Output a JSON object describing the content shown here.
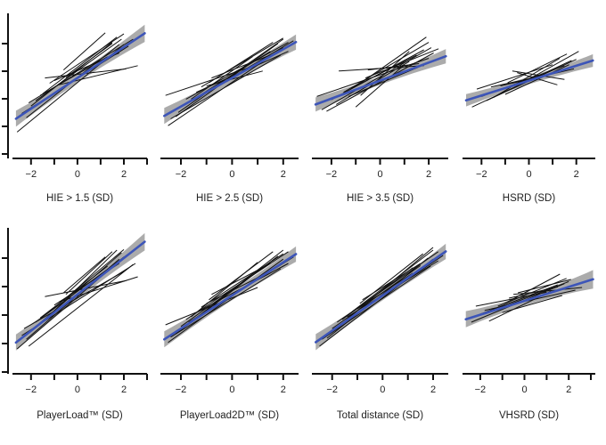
{
  "chart_data": [
    {
      "type": "line",
      "xlabel": "HIE > 1.5 (SD)",
      "xlim": [
        -2.8,
        3.0
      ],
      "xticks": [
        -2,
        0,
        2
      ],
      "fit": {
        "intercept": 0.05,
        "slope": 0.29,
        "band": 0.09
      },
      "individual_lines": [
        [
          -2.6,
          -0.97,
          2.0,
          0.68
        ],
        [
          -2.2,
          -0.7,
          1.8,
          0.68
        ],
        [
          -2.0,
          -0.48,
          1.5,
          0.72
        ],
        [
          -1.8,
          -0.38,
          1.9,
          0.78
        ],
        [
          -2.4,
          -0.62,
          2.2,
          0.65
        ],
        [
          -1.2,
          -0.05,
          2.0,
          0.88
        ],
        [
          -1.6,
          -0.28,
          1.3,
          0.45
        ],
        [
          -0.6,
          0.2,
          1.2,
          0.9
        ],
        [
          -1.0,
          0.0,
          1.8,
          0.52
        ],
        [
          -1.4,
          0.05,
          2.1,
          0.22
        ],
        [
          -0.8,
          -0.08,
          2.6,
          0.28
        ],
        [
          -2.1,
          -0.42,
          2.4,
          0.78
        ],
        [
          -1.5,
          -0.25,
          1.7,
          0.82
        ],
        [
          -0.5,
          0.06,
          1.5,
          0.7
        ]
      ]
    },
    {
      "type": "line",
      "xlabel": "HIE > 2.5 (SD)",
      "xlim": [
        -2.8,
        2.6
      ],
      "xticks": [
        -2,
        0,
        2
      ],
      "fit": {
        "intercept": 0.05,
        "slope": 0.27,
        "band": 0.09
      },
      "individual_lines": [
        [
          -2.5,
          -0.85,
          2.0,
          0.62
        ],
        [
          -2.2,
          -0.68,
          1.8,
          0.7
        ],
        [
          -2.0,
          -0.5,
          1.5,
          0.55
        ],
        [
          -1.8,
          -0.35,
          2.2,
          0.72
        ],
        [
          -1.6,
          -0.35,
          0.8,
          0.45
        ],
        [
          -1.2,
          -0.12,
          2.0,
          0.8
        ],
        [
          -0.9,
          -0.04,
          1.6,
          0.72
        ],
        [
          -2.4,
          -0.72,
          1.9,
          0.48
        ],
        [
          -1.4,
          -0.22,
          2.2,
          0.55
        ],
        [
          -0.8,
          0.05,
          1.5,
          0.48
        ],
        [
          -2.1,
          -0.6,
          2.0,
          0.78
        ],
        [
          -2.6,
          -0.28,
          1.0,
          0.3
        ],
        [
          -1.0,
          -0.1,
          1.2,
          0.18
        ],
        [
          -1.7,
          -0.42,
          2.4,
          0.75
        ]
      ]
    },
    {
      "type": "line",
      "xlabel": "HIE > 3.5 (SD)",
      "xlim": [
        -2.8,
        2.8
      ],
      "xticks": [
        -2,
        0,
        2
      ],
      "fit": {
        "intercept": 0.0,
        "slope": 0.17,
        "band": 0.08
      },
      "individual_lines": [
        [
          -2.4,
          -0.55,
          2.1,
          0.62
        ],
        [
          -2.0,
          -0.36,
          1.8,
          0.58
        ],
        [
          -1.5,
          -0.22,
          2.0,
          0.72
        ],
        [
          -1.2,
          -0.15,
          1.5,
          0.48
        ],
        [
          -0.9,
          -0.08,
          1.9,
          0.82
        ],
        [
          -2.6,
          -0.3,
          2.0,
          0.42
        ],
        [
          -1.8,
          -0.45,
          1.2,
          0.36
        ],
        [
          -0.6,
          0.05,
          2.4,
          0.6
        ],
        [
          -1.0,
          -0.5,
          1.0,
          0.3
        ],
        [
          -2.2,
          -0.58,
          2.2,
          0.52
        ],
        [
          -1.3,
          -0.3,
          2.6,
          0.45
        ],
        [
          -0.5,
          0.2,
          1.6,
          0.32
        ],
        [
          -1.7,
          0.18,
          1.8,
          0.28
        ],
        [
          -0.8,
          -0.28,
          1.2,
          0.55
        ]
      ]
    },
    {
      "type": "line",
      "xlabel": "HSRD (SD)",
      "xlim": [
        -2.8,
        2.8
      ],
      "xticks": [
        -2,
        0,
        2
      ],
      "fit": {
        "intercept": 0.0,
        "slope": 0.14,
        "band": 0.07
      },
      "individual_lines": [
        [
          -2.4,
          -0.5,
          1.8,
          0.38
        ],
        [
          -2.0,
          -0.3,
          1.5,
          0.28
        ],
        [
          -1.5,
          -0.32,
          1.3,
          0.42
        ],
        [
          -1.2,
          -0.1,
          1.9,
          0.22
        ],
        [
          -0.9,
          -0.04,
          1.6,
          0.5
        ],
        [
          -1.8,
          -0.38,
          2.0,
          0.4
        ],
        [
          -0.5,
          0.15,
          1.2,
          -0.08
        ],
        [
          -1.0,
          -0.26,
          1.7,
          0.3
        ],
        [
          -0.3,
          -0.05,
          2.1,
          0.55
        ],
        [
          -2.2,
          -0.16,
          1.0,
          0.3
        ],
        [
          -1.6,
          -0.12,
          0.9,
          0.12
        ],
        [
          -0.7,
          0.18,
          1.5,
          0.02
        ]
      ]
    },
    {
      "type": "line",
      "xlabel": "PlayerLoad™ (SD)",
      "xlim": [
        -2.8,
        3.0
      ],
      "xticks": [
        -2,
        0,
        2
      ],
      "fit": {
        "intercept": 0.02,
        "slope": 0.34,
        "band": 0.09
      },
      "individual_lines": [
        [
          -2.6,
          -1.0,
          2.0,
          0.72
        ],
        [
          -2.2,
          -0.82,
          1.8,
          0.68
        ],
        [
          -2.0,
          -0.66,
          1.9,
          0.8
        ],
        [
          -1.8,
          -0.5,
          2.2,
          0.78
        ],
        [
          -2.4,
          -0.75,
          2.5,
          0.6
        ],
        [
          -1.2,
          -0.3,
          2.0,
          0.86
        ],
        [
          -1.6,
          -0.42,
          1.3,
          0.55
        ],
        [
          -0.6,
          0.05,
          1.2,
          0.72
        ],
        [
          -1.0,
          -0.18,
          1.8,
          0.6
        ],
        [
          -1.4,
          -0.02,
          2.1,
          0.28
        ],
        [
          -0.8,
          -0.12,
          2.6,
          0.35
        ],
        [
          -2.1,
          -0.95,
          2.4,
          0.58
        ],
        [
          -1.5,
          -0.5,
          1.7,
          0.85
        ],
        [
          -0.5,
          0.02,
          1.5,
          0.82
        ],
        [
          -2.3,
          -0.62,
          2.0,
          0.45
        ]
      ]
    },
    {
      "type": "line",
      "xlabel": "PlayerLoad2D™ (SD)",
      "xlim": [
        -2.8,
        2.6
      ],
      "xticks": [
        -2,
        0,
        2
      ],
      "fit": {
        "intercept": 0.0,
        "slope": 0.31,
        "band": 0.09
      },
      "individual_lines": [
        [
          -2.5,
          -0.88,
          2.0,
          0.68
        ],
        [
          -2.2,
          -0.72,
          1.8,
          0.74
        ],
        [
          -2.0,
          -0.58,
          1.5,
          0.62
        ],
        [
          -1.8,
          -0.45,
          2.2,
          0.82
        ],
        [
          -1.6,
          -0.4,
          1.0,
          0.62
        ],
        [
          -1.2,
          -0.22,
          2.0,
          0.78
        ],
        [
          -0.9,
          -0.08,
          1.6,
          0.82
        ],
        [
          -2.4,
          -0.78,
          1.9,
          0.5
        ],
        [
          -1.4,
          -0.32,
          2.2,
          0.6
        ],
        [
          -0.8,
          0.02,
          1.5,
          0.6
        ],
        [
          -2.1,
          -0.68,
          2.0,
          0.85
        ],
        [
          -2.6,
          -0.55,
          1.0,
          0.15
        ],
        [
          -1.0,
          -0.15,
          1.2,
          0.38
        ],
        [
          -1.7,
          -0.5,
          2.4,
          0.72
        ]
      ]
    },
    {
      "type": "line",
      "xlabel": "Total distance (SD)",
      "xlim": [
        -2.8,
        2.6
      ],
      "xticks": [
        -2,
        0,
        2
      ],
      "fit": {
        "intercept": 0.0,
        "slope": 0.33,
        "band": 0.09
      },
      "individual_lines": [
        [
          -2.5,
          -0.95,
          2.0,
          0.68
        ],
        [
          -2.2,
          -0.8,
          1.8,
          0.7
        ],
        [
          -2.0,
          -0.62,
          1.5,
          0.56
        ],
        [
          -1.8,
          -0.5,
          2.2,
          0.82
        ],
        [
          -1.6,
          -0.45,
          1.2,
          0.52
        ],
        [
          -1.2,
          -0.3,
          2.0,
          0.85
        ],
        [
          -0.9,
          -0.15,
          1.6,
          0.78
        ],
        [
          -2.4,
          -0.82,
          1.9,
          0.55
        ],
        [
          -1.4,
          -0.4,
          2.2,
          0.65
        ],
        [
          -0.8,
          -0.08,
          1.5,
          0.6
        ],
        [
          -2.1,
          -0.72,
          2.0,
          0.9
        ],
        [
          -1.0,
          -0.25,
          1.2,
          0.42
        ],
        [
          -1.7,
          -0.55,
          2.4,
          0.75
        ]
      ]
    },
    {
      "type": "line",
      "xlabel": "VHSRD (SD)",
      "xlim": [
        -2.8,
        3.2
      ],
      "xticks": [
        -2,
        0,
        2
      ],
      "fit": {
        "intercept": -0.1,
        "slope": 0.13,
        "band": 0.09
      },
      "individual_lines": [
        [
          -2.4,
          -0.5,
          1.8,
          0.22
        ],
        [
          -2.0,
          -0.35,
          1.5,
          0.2
        ],
        [
          -1.5,
          -0.3,
          2.0,
          0.26
        ],
        [
          -1.2,
          -0.2,
          1.9,
          0.32
        ],
        [
          -0.9,
          -0.15,
          1.6,
          0.4
        ],
        [
          -1.8,
          -0.28,
          2.3,
          0.1
        ],
        [
          -0.5,
          0.02,
          2.6,
          0.15
        ],
        [
          -1.0,
          -0.32,
          1.7,
          0.0
        ],
        [
          -0.3,
          0.05,
          2.1,
          0.3
        ],
        [
          -2.2,
          -0.2,
          1.0,
          0.06
        ],
        [
          -1.6,
          -0.48,
          1.2,
          0.08
        ],
        [
          -0.7,
          -0.05,
          1.5,
          0.16
        ]
      ]
    }
  ]
}
